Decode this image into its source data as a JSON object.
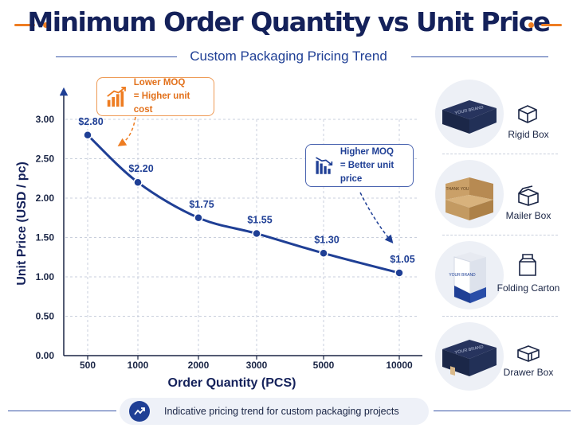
{
  "header": {
    "title": "Minimum Order Quantity vs Unit Price",
    "subtitle": "Custom Packaging Pricing Trend"
  },
  "chart_data": {
    "type": "line",
    "xlabel": "Order Quantity (PCS)",
    "ylabel": "Unit Price (USD / pc)",
    "categories": [
      "500",
      "1000",
      "2000",
      "3000",
      "5000",
      "10000"
    ],
    "values": [
      2.8,
      2.2,
      1.75,
      1.55,
      1.3,
      1.05
    ],
    "data_labels": [
      "$2.80",
      "$2.20",
      "$1.75",
      "$1.55",
      "$1.30",
      "$1.05"
    ],
    "y_ticks": [
      "0.00",
      "0.50",
      "1.00",
      "1.50",
      "2.00",
      "2.50",
      "3.00"
    ],
    "ylim": [
      0,
      3
    ],
    "grid": true,
    "annotations": [
      {
        "line1": "Lower MOQ",
        "line2": "= Higher unit cost",
        "color": "#e2701a"
      },
      {
        "line1": "Higher MOQ",
        "line2": "= Better unit price",
        "color": "#1f3f95"
      }
    ],
    "colors": {
      "line": "#1f3f95",
      "accent": "#ee7d22"
    }
  },
  "products": [
    {
      "label": "Rigid Box",
      "icon": "rigid-box-icon"
    },
    {
      "label": "Mailer Box",
      "icon": "mailer-box-icon"
    },
    {
      "label": "Folding Carton",
      "icon": "folding-carton-icon"
    },
    {
      "label": "Drawer Box",
      "icon": "drawer-box-icon"
    }
  ],
  "product_images": {
    "rigid_box_brand": "YOUR BRAND",
    "mailer_box_print": "THANK YOU",
    "folding_carton_brand": "YOUR BRAND",
    "drawer_box_brand": "YOUR BRAND"
  },
  "footer": {
    "text": "Indicative pricing trend for custom packaging projects",
    "icon": "trend-chart-icon"
  }
}
